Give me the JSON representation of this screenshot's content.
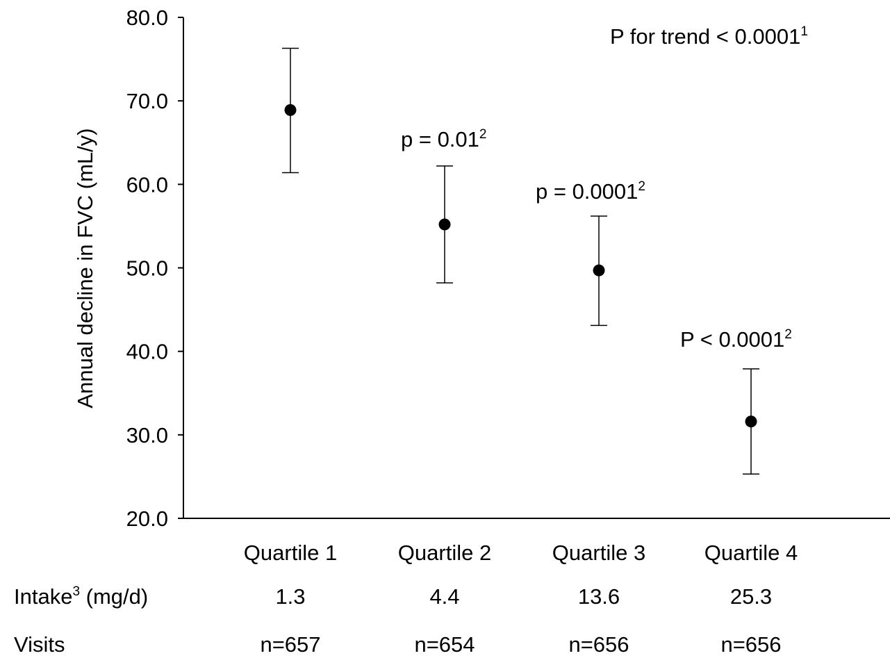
{
  "chart_data": {
    "type": "scatter",
    "ylabel": "Annual decline in FVC (mL/y)",
    "ylim": [
      20,
      80
    ],
    "yticks": [
      "20.0",
      "30.0",
      "40.0",
      "50.0",
      "60.0",
      "70.0",
      "80.0"
    ],
    "categories": [
      "Quartile 1",
      "Quartile 2",
      "Quartile 3",
      "Quartile 4"
    ],
    "values": [
      68.9,
      55.2,
      49.7,
      31.6
    ],
    "error_low": [
      61.4,
      48.2,
      43.1,
      25.3
    ],
    "error_high": [
      76.3,
      62.2,
      56.2,
      37.9
    ],
    "point_annotations": [
      "",
      "p = 0.01",
      "p = 0.0001",
      "P < 0.0001"
    ],
    "point_annotation_superscripts": [
      "",
      "2",
      "2",
      "2"
    ],
    "trend_annotation": "P for trend < 0.0001",
    "trend_annotation_superscript": "1",
    "grid": false,
    "marker_color": "#000000"
  },
  "table_rows": [
    {
      "label": "Intake",
      "label_superscript": "3",
      "label_suffix": " (mg/d)",
      "values": [
        "1.3",
        "4.4",
        "13.6",
        "25.3"
      ]
    },
    {
      "label": "Visits",
      "label_superscript": "",
      "label_suffix": "",
      "values": [
        "n=657",
        "n=654",
        "n=656",
        "n=656"
      ]
    }
  ]
}
